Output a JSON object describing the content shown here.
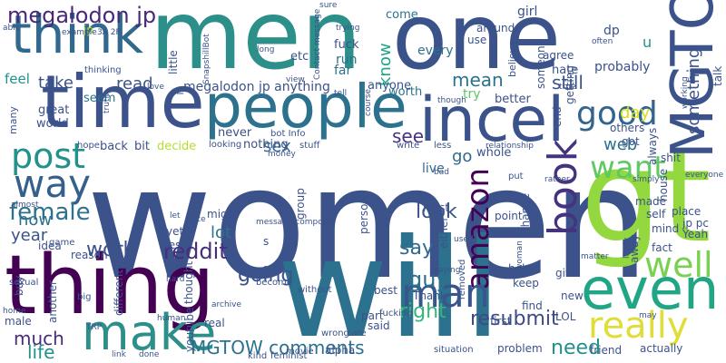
{
  "words": [
    {
      "text": "women",
      "color": "#3b528b"
    },
    {
      "text": "men",
      "color": "#2c8f8a"
    },
    {
      "text": "one",
      "color": "#3b528b"
    },
    {
      "text": "will",
      "color": "#2c728e"
    },
    {
      "text": "thing",
      "color": "#440154"
    },
    {
      "text": "time",
      "color": "#3b528b"
    },
    {
      "text": "people",
      "color": "#2c728e"
    },
    {
      "text": "incel",
      "color": "#3b528b"
    },
    {
      "text": "think",
      "color": "#31688e"
    },
    {
      "text": "gt",
      "color": "#94d840"
    },
    {
      "text": "MGTOW",
      "color": "#3b528b"
    },
    {
      "text": "even",
      "color": "#21a685"
    },
    {
      "text": "make",
      "color": "#2c8f8a"
    },
    {
      "text": "book",
      "color": "#46337f"
    },
    {
      "text": "really",
      "color": "#e1dd37"
    },
    {
      "text": "amazon",
      "color": "#440154"
    },
    {
      "text": "well",
      "color": "#7ad151"
    },
    {
      "text": "man",
      "color": "#39568c"
    },
    {
      "text": "way",
      "color": "#35608d"
    },
    {
      "text": "post",
      "color": "#21918c"
    },
    {
      "text": "good",
      "color": "#32648e"
    },
    {
      "text": "want",
      "color": "#5ec962"
    },
    {
      "text": "megalodon jp",
      "color": "#482878"
    },
    {
      "text": "female",
      "color": "#2c728e"
    },
    {
      "text": "reddit",
      "color": "#472d7b"
    },
    {
      "text": "work",
      "color": "#3b528b"
    },
    {
      "text": "going",
      "color": "#3b528b"
    },
    {
      "text": "say",
      "color": "#31688e"
    },
    {
      "text": "guy",
      "color": "#2c728e"
    },
    {
      "text": "resubmit",
      "color": "#3e4989"
    },
    {
      "text": "need",
      "color": "#21918c"
    },
    {
      "text": "MGTOW comments",
      "color": "#2c728e"
    },
    {
      "text": "look",
      "color": "#3b528b"
    },
    {
      "text": "right",
      "color": "#35b779"
    },
    {
      "text": "much",
      "color": "#472c7a"
    },
    {
      "text": "life",
      "color": "#21918c"
    },
    {
      "text": "year",
      "color": "#3b528b"
    },
    {
      "text": "now",
      "color": "#2c728e"
    },
    {
      "text": "lot",
      "color": "#2c728e"
    },
    {
      "text": "sex",
      "color": "#31688e"
    },
    {
      "text": "see",
      "color": "#46327e"
    },
    {
      "text": "still",
      "color": "#3b528b"
    },
    {
      "text": "mean",
      "color": "#2c728e"
    },
    {
      "text": "know",
      "color": "#20a386"
    },
    {
      "text": "something",
      "color": "#3b528b"
    },
    {
      "text": "day",
      "color": "#d8e219"
    },
    {
      "text": "go",
      "color": "#31688e"
    },
    {
      "text": "web",
      "color": "#2c728e"
    },
    {
      "text": "read",
      "color": "#3b528b"
    },
    {
      "text": "take",
      "color": "#3b528b"
    },
    {
      "text": "_megalodon jp anything",
      "color": "#3b528b"
    },
    {
      "text": "feel",
      "color": "#21918c"
    },
    {
      "text": "seem",
      "color": "#2c728e"
    },
    {
      "text": "jp",
      "color": "#b5de2b"
    },
    {
      "text": "come",
      "color": "#2c728e"
    },
    {
      "text": "worth",
      "color": "#2c728e"
    },
    {
      "text": "every",
      "color": "#2c728e"
    },
    {
      "text": "live",
      "color": "#31688e"
    },
    {
      "text": "anyone",
      "color": "#3b528b"
    },
    {
      "text": "try",
      "color": "#5ec962"
    },
    {
      "text": "better",
      "color": "#3b528b"
    },
    {
      "text": "probably",
      "color": "#3b528b"
    },
    {
      "text": "hate",
      "color": "#3b528b"
    },
    {
      "text": "girl",
      "color": "#3b528b"
    },
    {
      "text": "dp",
      "color": "#3b528b"
    },
    {
      "text": "u",
      "color": "#21918c"
    },
    {
      "text": "fuck",
      "color": "#3b528b"
    },
    {
      "text": "run",
      "color": "#2c728e"
    },
    {
      "text": "far",
      "color": "#2c728e"
    },
    {
      "text": "etc",
      "color": "#3b528b"
    },
    {
      "text": "little",
      "color": "#3b528b"
    },
    {
      "text": "great",
      "color": "#3b528b"
    },
    {
      "text": "world",
      "color": "#3b528b"
    },
    {
      "text": "back",
      "color": "#3b528b"
    },
    {
      "text": "bit",
      "color": "#3b528b"
    },
    {
      "text": "decide",
      "color": "#b5de2b"
    },
    {
      "text": "never",
      "color": "#3b528b"
    },
    {
      "text": "nothing",
      "color": "#3b528b"
    },
    {
      "text": "whole",
      "color": "#3b528b"
    },
    {
      "text": "others",
      "color": "#3b528b"
    },
    {
      "text": "got",
      "color": "#3b528b"
    },
    {
      "text": "shit",
      "color": "#3b528b"
    },
    {
      "text": "always",
      "color": "#3b528b"
    },
    {
      "text": "house",
      "color": "#3b528b"
    },
    {
      "text": "talk",
      "color": "#3b528b"
    },
    {
      "text": "made",
      "color": "#3b528b"
    },
    {
      "text": "place",
      "color": "#3b528b"
    },
    {
      "text": "Yeah",
      "color": "#3b528b"
    },
    {
      "text": "self",
      "color": "#3b528b"
    },
    {
      "text": "jp pc",
      "color": "#3b528b"
    },
    {
      "text": "mind",
      "color": "#3b528b"
    },
    {
      "text": "fact",
      "color": "#3b528b"
    },
    {
      "text": "away",
      "color": "#3b528b"
    },
    {
      "text": "point",
      "color": "#3b528b"
    },
    {
      "text": "least",
      "color": "#3b528b"
    },
    {
      "text": "change",
      "color": "#3b528b"
    },
    {
      "text": "either",
      "color": "#3b528b"
    },
    {
      "text": "group",
      "color": "#3b528b"
    },
    {
      "text": "enough",
      "color": "#3b528b"
    },
    {
      "text": "person",
      "color": "#3b528b"
    },
    {
      "text": "might",
      "color": "#3b528b"
    },
    {
      "text": "yet",
      "color": "#3b528b"
    },
    {
      "text": "Yes",
      "color": "#3b528b"
    },
    {
      "text": "idea",
      "color": "#3b528b"
    },
    {
      "text": "game",
      "color": "#3b528b"
    },
    {
      "text": "reason",
      "color": "#3b528b"
    },
    {
      "text": "buy",
      "color": "#3b528b"
    },
    {
      "text": "sexual",
      "color": "#3b528b"
    },
    {
      "text": "thought",
      "color": "#3b528b"
    },
    {
      "text": "different",
      "color": "#3b528b"
    },
    {
      "text": "another",
      "color": "#3b528b"
    },
    {
      "text": "male",
      "color": "#3b528b"
    },
    {
      "text": "best",
      "color": "#3b528b"
    },
    {
      "text": "Thank",
      "color": "#3b528b"
    },
    {
      "text": "help",
      "color": "#3b528b"
    },
    {
      "text": "give",
      "color": "#3b528b"
    },
    {
      "text": "keep",
      "color": "#3b528b"
    },
    {
      "text": "find",
      "color": "#3b528b"
    },
    {
      "text": "new",
      "color": "#3b528b"
    },
    {
      "text": "LOL",
      "color": "#3b528b"
    },
    {
      "text": "first",
      "color": "#3b528b"
    },
    {
      "text": "part",
      "color": "#3b528b"
    },
    {
      "text": "said",
      "color": "#3b528b"
    },
    {
      "text": "real",
      "color": "#3b528b"
    },
    {
      "text": "youtube",
      "color": "#3b528b"
    },
    {
      "text": "alpha",
      "color": "#3b528b"
    },
    {
      "text": "problem",
      "color": "#3b528b"
    },
    {
      "text": "friend",
      "color": "#3b528b"
    },
    {
      "text": "actually",
      "color": "#3b528b"
    },
    {
      "text": "removed",
      "color": "#3b528b"
    },
    {
      "text": "s",
      "color": "#3b528b"
    },
    {
      "text": "use",
      "color": "#3b528b"
    },
    {
      "text": "around",
      "color": "#3b528b"
    },
    {
      "text": "believe",
      "color": "#3b528b"
    },
    {
      "text": "someone",
      "color": "#3b528b"
    },
    {
      "text": "agree",
      "color": "#3b528b"
    },
    {
      "text": "getting",
      "color": "#3b528b"
    },
    {
      "text": "end",
      "color": "#3b528b"
    },
    {
      "text": "thinking",
      "color": "#3b528b"
    },
    {
      "text": "love",
      "color": "#3b528b"
    },
    {
      "text": "many",
      "color": "#3b528b"
    },
    {
      "text": "truth",
      "color": "#3b528b"
    },
    {
      "text": "hope",
      "color": "#3b528b"
    },
    {
      "text": "looking",
      "color": "#3b528b"
    },
    {
      "text": "stuff",
      "color": "#3b528b"
    },
    {
      "text": "bot Info",
      "color": "#3b528b"
    },
    {
      "text": "money",
      "color": "#3b528b"
    },
    {
      "text": "write",
      "color": "#3b528b"
    },
    {
      "text": "less",
      "color": "#3b528b"
    },
    {
      "text": "relationship",
      "color": "#3b528b"
    },
    {
      "text": "put",
      "color": "#3b528b"
    },
    {
      "text": "rather",
      "color": "#3b528b"
    },
    {
      "text": "simply",
      "color": "#3b528b"
    },
    {
      "text": "everyone",
      "color": "#3b528b"
    },
    {
      "text": "matter",
      "color": "#3b528b"
    },
    {
      "text": "likely",
      "color": "#3b528b"
    },
    {
      "text": "saying",
      "color": "#3b528b"
    },
    {
      "text": "woman",
      "color": "#3b528b"
    },
    {
      "text": "used",
      "color": "#3b528b"
    },
    {
      "text": "bad",
      "color": "#3b528b"
    },
    {
      "text": "fucking",
      "color": "#3b528b"
    },
    {
      "text": "care",
      "color": "#3b528b"
    },
    {
      "text": "situation",
      "color": "#3b528b"
    },
    {
      "text": "movie",
      "color": "#3b528b"
    },
    {
      "text": "kind",
      "color": "#3b528b"
    },
    {
      "text": "feminist",
      "color": "#3b528b"
    },
    {
      "text": "wrong",
      "color": "#3b528b"
    },
    {
      "text": "become",
      "color": "#3b528b"
    },
    {
      "text": "without",
      "color": "#3b528b"
    },
    {
      "text": "archive",
      "color": "#3b528b"
    },
    {
      "text": "human",
      "color": "#3b528b"
    },
    {
      "text": "done",
      "color": "#3b528b"
    },
    {
      "text": "link",
      "color": "#3b528b"
    },
    {
      "text": "TRP",
      "color": "#3b528b"
    },
    {
      "text": "big",
      "color": "#3b528b"
    },
    {
      "text": "home",
      "color": "#3b528b"
    },
    {
      "text": "almost",
      "color": "#3b528b"
    },
    {
      "text": "let",
      "color": "#3b528b"
    },
    {
      "text": "nice",
      "color": "#3b528b"
    },
    {
      "text": "hard",
      "color": "#3b528b"
    },
    {
      "text": "message compose",
      "color": "#3b528b"
    },
    {
      "text": "SnapshillBot",
      "color": "#3b528b"
    },
    {
      "text": "view",
      "color": "#3b528b"
    },
    {
      "text": "long",
      "color": "#3b528b"
    },
    {
      "text": "Contact message",
      "color": "#3b528b"
    },
    {
      "text": "trying",
      "color": "#3b528b"
    },
    {
      "text": "sure",
      "color": "#3b528b"
    },
    {
      "text": "3A 2F",
      "color": "#3b528b"
    },
    {
      "text": "example",
      "color": "#3b528b"
    },
    {
      "text": "able",
      "color": "#3b528b"
    },
    {
      "text": "tell",
      "color": "#3b528b"
    },
    {
      "text": "course",
      "color": "#3b528b"
    },
    {
      "text": "though",
      "color": "#3b528b"
    },
    {
      "text": "true",
      "color": "#3b528b"
    },
    {
      "text": "often",
      "color": "#3b528b"
    },
    {
      "text": "working",
      "color": "#3b528b"
    },
    {
      "text": "may",
      "color": "#3b528b"
    }
  ]
}
